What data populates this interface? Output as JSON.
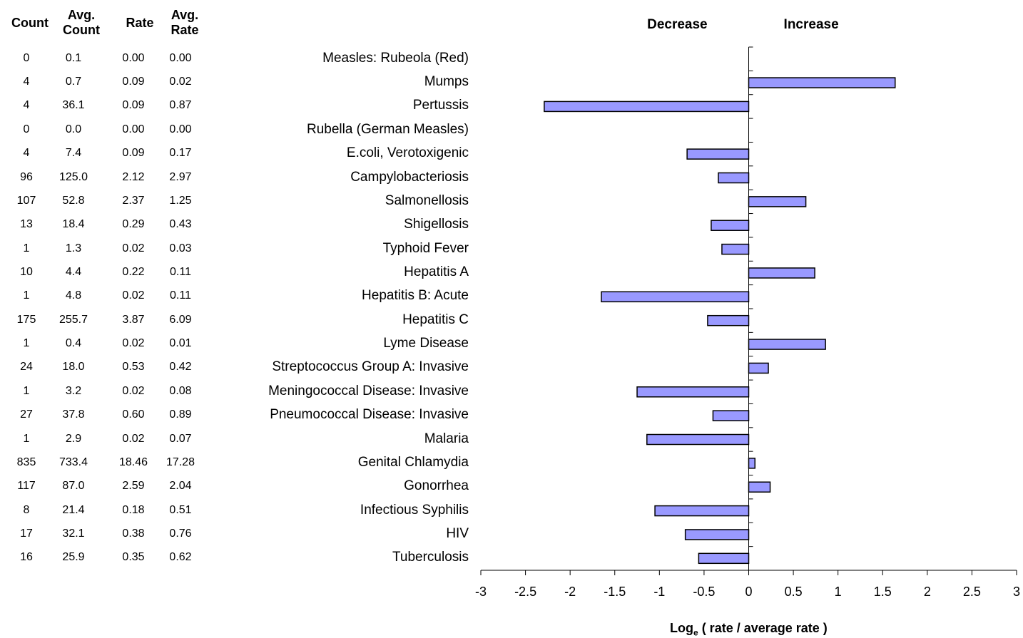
{
  "table": {
    "headers": {
      "count": "Count",
      "avg_count_1": "Avg.",
      "avg_count_2": "Count",
      "rate": "Rate",
      "avg_rate_1": "Avg.",
      "avg_rate_2": "Rate"
    },
    "rows": [
      {
        "count": "0",
        "avg_count": "0.1",
        "rate": "0.00",
        "avg_rate": "0.00"
      },
      {
        "count": "4",
        "avg_count": "0.7",
        "rate": "0.09",
        "avg_rate": "0.02"
      },
      {
        "count": "4",
        "avg_count": "36.1",
        "rate": "0.09",
        "avg_rate": "0.87"
      },
      {
        "count": "0",
        "avg_count": "0.0",
        "rate": "0.00",
        "avg_rate": "0.00"
      },
      {
        "count": "4",
        "avg_count": "7.4",
        "rate": "0.09",
        "avg_rate": "0.17"
      },
      {
        "count": "96",
        "avg_count": "125.0",
        "rate": "2.12",
        "avg_rate": "2.97"
      },
      {
        "count": "107",
        "avg_count": "52.8",
        "rate": "2.37",
        "avg_rate": "1.25"
      },
      {
        "count": "13",
        "avg_count": "18.4",
        "rate": "0.29",
        "avg_rate": "0.43"
      },
      {
        "count": "1",
        "avg_count": "1.3",
        "rate": "0.02",
        "avg_rate": "0.03"
      },
      {
        "count": "10",
        "avg_count": "4.4",
        "rate": "0.22",
        "avg_rate": "0.11"
      },
      {
        "count": "1",
        "avg_count": "4.8",
        "rate": "0.02",
        "avg_rate": "0.11"
      },
      {
        "count": "175",
        "avg_count": "255.7",
        "rate": "3.87",
        "avg_rate": "6.09"
      },
      {
        "count": "1",
        "avg_count": "0.4",
        "rate": "0.02",
        "avg_rate": "0.01"
      },
      {
        "count": "24",
        "avg_count": "18.0",
        "rate": "0.53",
        "avg_rate": "0.42"
      },
      {
        "count": "1",
        "avg_count": "3.2",
        "rate": "0.02",
        "avg_rate": "0.08"
      },
      {
        "count": "27",
        "avg_count": "37.8",
        "rate": "0.60",
        "avg_rate": "0.89"
      },
      {
        "count": "1",
        "avg_count": "2.9",
        "rate": "0.02",
        "avg_rate": "0.07"
      },
      {
        "count": "835",
        "avg_count": "733.4",
        "rate": "18.46",
        "avg_rate": "17.28"
      },
      {
        "count": "117",
        "avg_count": "87.0",
        "rate": "2.59",
        "avg_rate": "2.04"
      },
      {
        "count": "8",
        "avg_count": "21.4",
        "rate": "0.18",
        "avg_rate": "0.51"
      },
      {
        "count": "17",
        "avg_count": "32.1",
        "rate": "0.38",
        "avg_rate": "0.76"
      },
      {
        "count": "16",
        "avg_count": "25.9",
        "rate": "0.35",
        "avg_rate": "0.62"
      }
    ]
  },
  "chart_data": {
    "type": "bar",
    "orientation": "horizontal",
    "categories": [
      "Measles: Rubeola (Red)",
      "Mumps",
      "Pertussis",
      "Rubella (German Measles)",
      "E.coli, Verotoxigenic",
      "Campylobacteriosis",
      "Salmonellosis",
      "Shigellosis",
      "Typhoid Fever",
      "Hepatitis A",
      "Hepatitis B: Acute",
      "Hepatitis C",
      "Lyme Disease",
      "Streptococcus Group A: Invasive",
      "Meningococcal Disease: Invasive",
      "Pneumococcal Disease: Invasive",
      "Malaria",
      "Genital Chlamydia",
      "Gonorrhea",
      "Infectious Syphilis",
      "HIV",
      "Tuberculosis"
    ],
    "values": [
      0,
      1.64,
      -2.29,
      0,
      -0.69,
      -0.34,
      0.64,
      -0.42,
      -0.3,
      0.74,
      -1.65,
      -0.46,
      0.86,
      0.22,
      -1.25,
      -0.4,
      -1.14,
      0.07,
      0.24,
      -1.05,
      -0.71,
      -0.56
    ],
    "xlabel_main": "Log",
    "xlabel_sub": "e",
    "xlabel_rest": " ( rate / average rate )",
    "decrease_label": "Decrease",
    "increase_label": "Increase",
    "xlim": [
      -3,
      3
    ],
    "xticks": [
      -3,
      -2.5,
      -2,
      -1.5,
      -1,
      -0.5,
      0,
      0.5,
      1,
      1.5,
      2,
      2.5,
      3
    ],
    "bar_color": "#9999ff",
    "bar_edge": "#000000"
  }
}
